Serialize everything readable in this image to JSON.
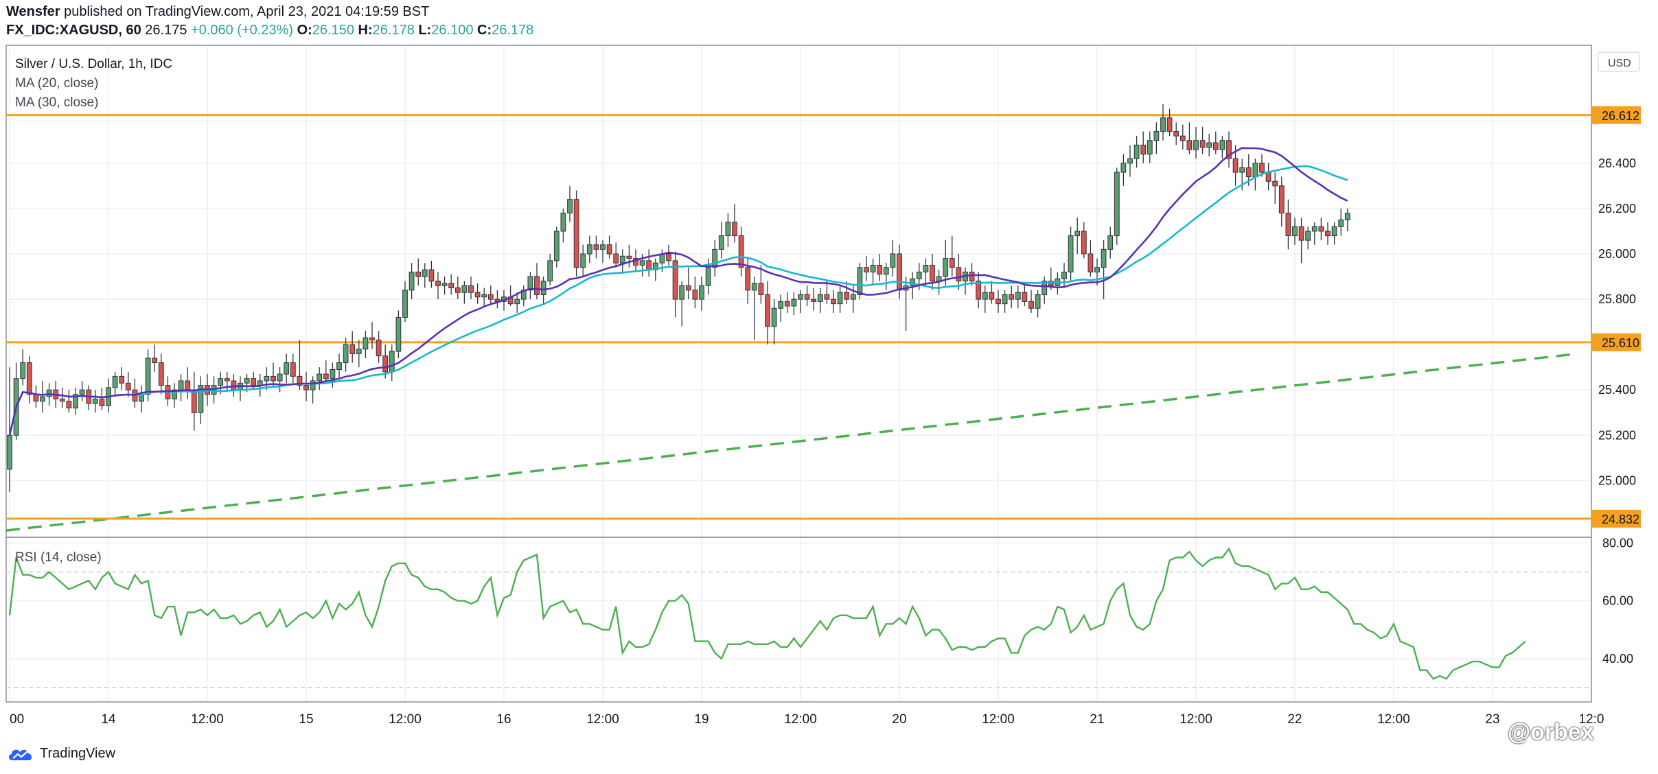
{
  "header": {
    "author": "Wensfer",
    "published": "published on TradingView.com, April 23, 2021 04:19:59 BST",
    "symbol": "FX_IDC:XAGUSD, 60",
    "last": "26.175",
    "change": "+0.060 (+0.23%)",
    "o_label": "O:",
    "o_value": "26.150",
    "h_label": "H:",
    "h_value": "26.178",
    "l_label": "L:",
    "l_value": "26.100",
    "c_label": "C:",
    "c_value": "26.178"
  },
  "legend": {
    "title": "Silver / U.S. Dollar, 1h, IDC",
    "ma20": "MA (20, close)",
    "ma30": "MA (30, close)",
    "rsi": "RSI (14, close)"
  },
  "currency": "USD",
  "footer": {
    "brand": "TradingView",
    "watermark": "@orbex"
  },
  "colors": {
    "up": "#5aa070",
    "down": "#d9534f",
    "ma20": "#5b2fb5",
    "ma30": "#16b8cc",
    "level": "#f5a020",
    "trend": "#4caf50",
    "rsi": "#4caf50",
    "grid": "#eceff2"
  },
  "chart_data": {
    "type": "candlestick",
    "price_ylim": [
      24.75,
      26.92
    ],
    "y_ticks": [
      "25.000",
      "25.200",
      "25.400",
      "25.800",
      "26.000",
      "26.200",
      "26.400"
    ],
    "x_ticks": [
      "00",
      "14",
      "12:00",
      "15",
      "12:00",
      "16",
      "12:00",
      "19",
      "12:00",
      "20",
      "12:00",
      "21",
      "12:00",
      "22",
      "12:00",
      "23",
      "12:0"
    ],
    "levels": [
      {
        "label": "26.612",
        "value": 26.612
      },
      {
        "label": "25.610",
        "value": 25.61
      },
      {
        "label": "24.832",
        "value": 24.832
      }
    ],
    "trendline": {
      "start": [
        0,
        24.78
      ],
      "end": [
        238,
        25.56
      ]
    },
    "candles": [
      [
        25.05,
        25.5,
        24.95,
        25.2
      ],
      [
        25.2,
        25.52,
        25.18,
        25.45
      ],
      [
        25.45,
        25.58,
        25.42,
        25.52
      ],
      [
        25.52,
        25.55,
        25.34,
        25.38
      ],
      [
        25.38,
        25.42,
        25.32,
        25.35
      ],
      [
        25.35,
        25.44,
        25.3,
        25.37
      ],
      [
        25.37,
        25.43,
        25.33,
        25.4
      ],
      [
        25.4,
        25.44,
        25.32,
        25.36
      ],
      [
        25.36,
        25.41,
        25.32,
        25.35
      ],
      [
        25.35,
        25.4,
        25.3,
        25.32
      ],
      [
        25.32,
        25.41,
        25.29,
        25.38
      ],
      [
        25.38,
        25.44,
        25.35,
        25.4
      ],
      [
        25.4,
        25.42,
        25.31,
        25.34
      ],
      [
        25.34,
        25.4,
        25.3,
        25.36
      ],
      [
        25.36,
        25.41,
        25.31,
        25.33
      ],
      [
        25.33,
        25.45,
        25.3,
        25.41
      ],
      [
        25.41,
        25.48,
        25.37,
        25.46
      ],
      [
        25.46,
        25.5,
        25.4,
        25.43
      ],
      [
        25.43,
        25.48,
        25.37,
        25.4
      ],
      [
        25.4,
        25.45,
        25.32,
        25.35
      ],
      [
        25.35,
        25.42,
        25.3,
        25.38
      ],
      [
        25.38,
        25.58,
        25.35,
        25.54
      ],
      [
        25.54,
        25.6,
        25.48,
        25.52
      ],
      [
        25.52,
        25.56,
        25.38,
        25.42
      ],
      [
        25.42,
        25.46,
        25.33,
        25.36
      ],
      [
        25.36,
        25.43,
        25.32,
        25.4
      ],
      [
        25.4,
        25.47,
        25.35,
        25.44
      ],
      [
        25.44,
        25.5,
        25.36,
        25.4
      ],
      [
        25.4,
        25.48,
        25.22,
        25.3
      ],
      [
        25.3,
        25.46,
        25.25,
        25.42
      ],
      [
        25.42,
        25.47,
        25.33,
        25.38
      ],
      [
        25.38,
        25.46,
        25.34,
        25.42
      ],
      [
        25.42,
        25.48,
        25.38,
        25.45
      ],
      [
        25.45,
        25.48,
        25.4,
        25.44
      ],
      [
        25.44,
        25.47,
        25.37,
        25.4
      ],
      [
        25.4,
        25.46,
        25.35,
        25.43
      ],
      [
        25.43,
        25.47,
        25.39,
        25.45
      ],
      [
        25.45,
        25.48,
        25.4,
        25.42
      ],
      [
        25.42,
        25.47,
        25.37,
        25.44
      ],
      [
        25.44,
        25.5,
        25.4,
        25.46
      ],
      [
        25.46,
        25.52,
        25.41,
        25.44
      ],
      [
        25.44,
        25.5,
        25.39,
        25.47
      ],
      [
        25.47,
        25.56,
        25.43,
        25.52
      ],
      [
        25.52,
        25.56,
        25.43,
        25.46
      ],
      [
        25.46,
        25.62,
        25.4,
        25.42
      ],
      [
        25.42,
        25.48,
        25.35,
        25.4
      ],
      [
        25.4,
        25.46,
        25.34,
        25.44
      ],
      [
        25.44,
        25.5,
        25.4,
        25.47
      ],
      [
        25.47,
        25.53,
        25.43,
        25.45
      ],
      [
        25.45,
        25.52,
        25.41,
        25.49
      ],
      [
        25.49,
        25.56,
        25.45,
        25.52
      ],
      [
        25.52,
        25.63,
        25.48,
        25.6
      ],
      [
        25.6,
        25.66,
        25.52,
        25.56
      ],
      [
        25.56,
        25.62,
        25.5,
        25.58
      ],
      [
        25.58,
        25.66,
        25.54,
        25.63
      ],
      [
        25.63,
        25.7,
        25.58,
        25.62
      ],
      [
        25.62,
        25.66,
        25.52,
        25.55
      ],
      [
        25.55,
        25.6,
        25.45,
        25.48
      ],
      [
        25.48,
        25.6,
        25.44,
        25.57
      ],
      [
        25.57,
        25.75,
        25.54,
        25.72
      ],
      [
        25.72,
        25.88,
        25.7,
        25.84
      ],
      [
        25.84,
        25.96,
        25.8,
        25.92
      ],
      [
        25.92,
        25.98,
        25.86,
        25.9
      ],
      [
        25.9,
        25.96,
        25.85,
        25.93
      ],
      [
        25.93,
        25.97,
        25.85,
        25.88
      ],
      [
        25.88,
        25.92,
        25.8,
        25.86
      ],
      [
        25.86,
        25.9,
        25.82,
        25.87
      ],
      [
        25.87,
        25.91,
        25.82,
        25.85
      ],
      [
        25.85,
        25.9,
        25.8,
        25.83
      ],
      [
        25.83,
        25.88,
        25.78,
        25.86
      ],
      [
        25.86,
        25.9,
        25.8,
        25.83
      ],
      [
        25.83,
        25.87,
        25.78,
        25.81
      ],
      [
        25.81,
        25.85,
        25.77,
        25.82
      ],
      [
        25.82,
        25.86,
        25.78,
        25.8
      ],
      [
        25.8,
        25.84,
        25.76,
        25.79
      ],
      [
        25.79,
        25.84,
        25.75,
        25.81
      ],
      [
        25.81,
        25.86,
        25.77,
        25.78
      ],
      [
        25.78,
        25.83,
        25.74,
        25.8
      ],
      [
        25.8,
        25.86,
        25.77,
        25.84
      ],
      [
        25.84,
        25.92,
        25.8,
        25.9
      ],
      [
        25.9,
        25.96,
        25.8,
        25.82
      ],
      [
        25.82,
        25.9,
        25.78,
        25.88
      ],
      [
        25.88,
        26.0,
        25.86,
        25.97
      ],
      [
        25.97,
        26.12,
        25.94,
        26.1
      ],
      [
        26.1,
        26.2,
        26.05,
        26.18
      ],
      [
        26.18,
        26.3,
        26.14,
        26.24
      ],
      [
        26.24,
        26.28,
        25.9,
        25.94
      ],
      [
        25.94,
        26.04,
        25.9,
        26.0
      ],
      [
        26.0,
        26.08,
        25.96,
        26.04
      ],
      [
        26.04,
        26.08,
        25.98,
        26.02
      ],
      [
        26.02,
        26.06,
        25.96,
        26.04
      ],
      [
        26.04,
        26.08,
        25.98,
        26.0
      ],
      [
        26.0,
        26.05,
        25.94,
        25.96
      ],
      [
        25.96,
        26.02,
        25.92,
        25.99
      ],
      [
        25.99,
        26.04,
        25.94,
        25.98
      ],
      [
        25.98,
        26.02,
        25.92,
        25.95
      ],
      [
        25.95,
        26.0,
        25.9,
        25.97
      ],
      [
        25.97,
        26.02,
        25.9,
        25.93
      ],
      [
        25.93,
        25.98,
        25.88,
        25.96
      ],
      [
        25.96,
        26.02,
        25.92,
        26.0
      ],
      [
        26.0,
        26.04,
        25.95,
        25.97
      ],
      [
        25.97,
        26.01,
        25.72,
        25.8
      ],
      [
        25.8,
        25.88,
        25.68,
        25.86
      ],
      [
        25.86,
        25.94,
        25.8,
        25.84
      ],
      [
        25.84,
        25.9,
        25.76,
        25.8
      ],
      [
        25.8,
        25.9,
        25.75,
        25.86
      ],
      [
        25.86,
        25.98,
        25.82,
        25.94
      ],
      [
        25.94,
        26.06,
        25.9,
        26.02
      ],
      [
        26.02,
        26.14,
        25.98,
        26.08
      ],
      [
        26.08,
        26.18,
        26.03,
        26.14
      ],
      [
        26.14,
        26.22,
        26.05,
        26.08
      ],
      [
        26.08,
        26.12,
        25.9,
        25.94
      ],
      [
        25.94,
        25.98,
        25.78,
        25.84
      ],
      [
        25.84,
        25.9,
        25.62,
        25.87
      ],
      [
        25.87,
        25.95,
        25.78,
        25.82
      ],
      [
        25.82,
        25.88,
        25.6,
        25.68
      ],
      [
        25.68,
        25.8,
        25.6,
        25.76
      ],
      [
        25.76,
        25.82,
        25.7,
        25.79
      ],
      [
        25.79,
        25.83,
        25.74,
        25.77
      ],
      [
        25.77,
        25.83,
        25.73,
        25.8
      ],
      [
        25.8,
        25.84,
        25.74,
        25.82
      ],
      [
        25.82,
        25.86,
        25.77,
        25.8
      ],
      [
        25.8,
        25.85,
        25.75,
        25.79
      ],
      [
        25.79,
        25.85,
        25.74,
        25.82
      ],
      [
        25.82,
        25.88,
        25.78,
        25.8
      ],
      [
        25.8,
        25.84,
        25.74,
        25.78
      ],
      [
        25.78,
        25.86,
        25.74,
        25.83
      ],
      [
        25.83,
        25.88,
        25.78,
        25.8
      ],
      [
        25.8,
        25.86,
        25.74,
        25.82
      ],
      [
        25.82,
        25.96,
        25.8,
        25.94
      ],
      [
        25.94,
        25.99,
        25.88,
        25.92
      ],
      [
        25.92,
        25.98,
        25.86,
        25.95
      ],
      [
        25.95,
        26.0,
        25.88,
        25.91
      ],
      [
        25.91,
        25.96,
        25.84,
        25.94
      ],
      [
        25.94,
        26.06,
        25.9,
        26.0
      ],
      [
        26.0,
        26.04,
        25.8,
        25.84
      ],
      [
        25.84,
        25.9,
        25.66,
        25.86
      ],
      [
        25.86,
        25.92,
        25.8,
        25.89
      ],
      [
        25.89,
        25.96,
        25.84,
        25.92
      ],
      [
        25.92,
        25.98,
        25.86,
        25.95
      ],
      [
        25.95,
        26.0,
        25.84,
        25.88
      ],
      [
        25.88,
        25.93,
        25.82,
        25.9
      ],
      [
        25.9,
        26.06,
        25.86,
        25.98
      ],
      [
        25.98,
        26.08,
        25.9,
        25.94
      ],
      [
        25.94,
        26.0,
        25.84,
        25.88
      ],
      [
        25.88,
        25.94,
        25.82,
        25.92
      ],
      [
        25.92,
        25.96,
        25.86,
        25.88
      ],
      [
        25.88,
        25.92,
        25.76,
        25.8
      ],
      [
        25.8,
        25.86,
        25.74,
        25.83
      ],
      [
        25.83,
        25.88,
        25.78,
        25.8
      ],
      [
        25.8,
        25.84,
        25.74,
        25.78
      ],
      [
        25.78,
        25.84,
        25.74,
        25.82
      ],
      [
        25.82,
        25.86,
        25.76,
        25.8
      ],
      [
        25.8,
        25.86,
        25.76,
        25.83
      ],
      [
        25.83,
        25.87,
        25.77,
        25.79
      ],
      [
        25.79,
        25.84,
        25.74,
        25.76
      ],
      [
        25.76,
        25.84,
        25.72,
        25.82
      ],
      [
        25.82,
        25.9,
        25.78,
        25.88
      ],
      [
        25.88,
        25.94,
        25.84,
        25.86
      ],
      [
        25.86,
        25.92,
        25.82,
        25.89
      ],
      [
        25.89,
        25.96,
        25.85,
        25.92
      ],
      [
        25.92,
        26.12,
        25.88,
        26.08
      ],
      [
        26.08,
        26.16,
        26.0,
        26.1
      ],
      [
        26.1,
        26.14,
        25.98,
        26.0
      ],
      [
        26.0,
        26.06,
        25.9,
        25.92
      ],
      [
        25.92,
        25.98,
        25.86,
        25.94
      ],
      [
        25.94,
        26.06,
        25.8,
        26.02
      ],
      [
        26.02,
        26.12,
        25.98,
        26.08
      ],
      [
        26.08,
        26.38,
        26.04,
        26.36
      ],
      [
        26.36,
        26.44,
        26.3,
        26.4
      ],
      [
        26.4,
        26.48,
        26.34,
        26.42
      ],
      [
        26.42,
        26.52,
        26.38,
        26.48
      ],
      [
        26.48,
        26.54,
        26.4,
        26.44
      ],
      [
        26.44,
        26.54,
        26.4,
        26.5
      ],
      [
        26.5,
        26.58,
        26.44,
        26.54
      ],
      [
        26.54,
        26.66,
        26.5,
        26.6
      ],
      [
        26.6,
        26.64,
        26.52,
        26.54
      ],
      [
        26.54,
        26.58,
        26.48,
        26.52
      ],
      [
        26.52,
        26.57,
        26.46,
        26.5
      ],
      [
        26.5,
        26.58,
        26.44,
        26.46
      ],
      [
        26.46,
        26.56,
        26.42,
        26.5
      ],
      [
        26.5,
        26.56,
        26.44,
        26.47
      ],
      [
        26.47,
        26.53,
        26.43,
        26.49
      ],
      [
        26.49,
        26.54,
        26.44,
        26.46
      ],
      [
        26.46,
        26.52,
        26.42,
        26.5
      ],
      [
        26.5,
        26.54,
        26.38,
        26.42
      ],
      [
        26.42,
        26.48,
        26.3,
        26.36
      ],
      [
        26.36,
        26.42,
        26.28,
        26.38
      ],
      [
        26.38,
        26.44,
        26.3,
        26.34
      ],
      [
        26.34,
        26.42,
        26.28,
        26.4
      ],
      [
        26.4,
        26.44,
        26.34,
        26.36
      ],
      [
        26.36,
        26.4,
        26.28,
        26.32
      ],
      [
        26.32,
        26.36,
        26.22,
        26.3
      ],
      [
        26.3,
        26.34,
        26.12,
        26.18
      ],
      [
        26.18,
        26.24,
        26.02,
        26.08
      ],
      [
        26.08,
        26.16,
        26.04,
        26.12
      ],
      [
        26.12,
        26.16,
        25.96,
        26.06
      ],
      [
        26.06,
        26.12,
        26.02,
        26.1
      ],
      [
        26.1,
        26.14,
        26.04,
        26.12
      ],
      [
        26.12,
        26.16,
        26.06,
        26.1
      ],
      [
        26.1,
        26.14,
        26.04,
        26.08
      ],
      [
        26.08,
        26.14,
        26.04,
        26.12
      ],
      [
        26.12,
        26.2,
        26.08,
        26.15
      ],
      [
        26.15,
        26.2,
        26.1,
        26.18
      ]
    ],
    "rsi_ylim": [
      25,
      82
    ],
    "rsi_ticks": [
      "80.00",
      "60.00",
      "40.00"
    ],
    "rsi_bands": [
      70,
      30
    ],
    "rsi_values": [
      55,
      75,
      69,
      69,
      68,
      68,
      70,
      68,
      66,
      64,
      65,
      66,
      67,
      64,
      68,
      70,
      66,
      65,
      64,
      69,
      66,
      67,
      55,
      54,
      58,
      58,
      48,
      56,
      56,
      57,
      55,
      57,
      54,
      54,
      55,
      52,
      53,
      55,
      56,
      51,
      53,
      57,
      51,
      53,
      55,
      56,
      54,
      56,
      60,
      54,
      59,
      57,
      59,
      63,
      55,
      51,
      58,
      67,
      72,
      73,
      73,
      69,
      68,
      65,
      64,
      64,
      63,
      61,
      60,
      60,
      59,
      60,
      65,
      68,
      55,
      61,
      62,
      70,
      74,
      75,
      76,
      54,
      58,
      59,
      60,
      56,
      57,
      52,
      52,
      51,
      50,
      50,
      58,
      42,
      46,
      44,
      44,
      45,
      50,
      56,
      60,
      60,
      62,
      59,
      46,
      46,
      46,
      42,
      40,
      45,
      45,
      45,
      46,
      45,
      45,
      45,
      46,
      44,
      44,
      47,
      44,
      47,
      50,
      53,
      50,
      54,
      55,
      55,
      54,
      54,
      54,
      58,
      48,
      52,
      52,
      54,
      52,
      58,
      54,
      48,
      50,
      50,
      47,
      43,
      44,
      44,
      43,
      44,
      44,
      46,
      47,
      47,
      42,
      42,
      48,
      50,
      51,
      50,
      52,
      58,
      57,
      49,
      51,
      55,
      50,
      51,
      52,
      60,
      64,
      66,
      55,
      51,
      50,
      52,
      60,
      64,
      74,
      75,
      75,
      77,
      74,
      72,
      74,
      75,
      75,
      78,
      73,
      72,
      72,
      71,
      70,
      69,
      64,
      66,
      66,
      68,
      64,
      64,
      65,
      63,
      63,
      61,
      59,
      57,
      52,
      52,
      50,
      49,
      47,
      48,
      52,
      46,
      45,
      44,
      36,
      36,
      33,
      34,
      33,
      36,
      37,
      38,
      39,
      39,
      38,
      37,
      37,
      41,
      42,
      44,
      46
    ]
  }
}
